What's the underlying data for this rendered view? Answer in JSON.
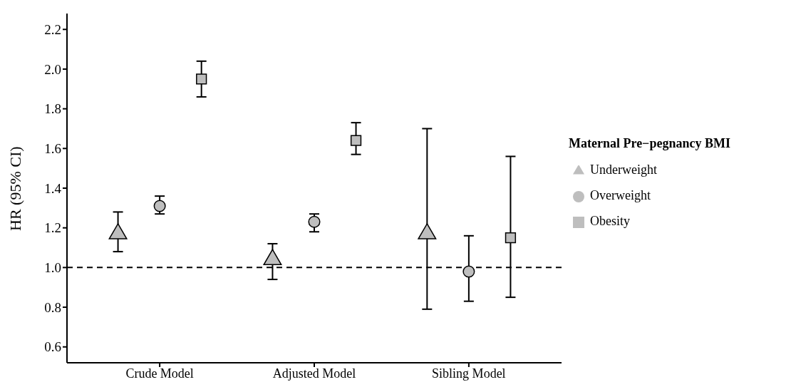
{
  "chart_data": {
    "type": "scatter",
    "ylabel": "HR (95% CI)",
    "legend_title": "Maternal Pre−pegnancy BMI",
    "legend": "right",
    "categories": [
      "Crude Model",
      "Adjusted Model",
      "Sibling Model"
    ],
    "ylim": [
      0.52,
      2.28
    ],
    "yticks": [
      0.6,
      0.8,
      {
        "value": 1,
        "label": "1.0"
      },
      1.2,
      1.4,
      1.6,
      1.8,
      {
        "value": 2,
        "label": "2.0"
      },
      2.2
    ],
    "grid": false,
    "series": [
      {
        "name": "Underweight",
        "color": "#bebebe",
        "marker": "triangle",
        "values": [
          1.17,
          1.04,
          1.17
        ],
        "errors": [
          [
            1.08,
            1.28
          ],
          [
            0.94,
            1.12
          ],
          [
            0.79,
            1.7
          ]
        ]
      },
      {
        "name": "Overweight",
        "color": "#bebebe",
        "marker": "circle",
        "values": [
          1.31,
          1.23,
          0.98
        ],
        "errors": [
          [
            1.27,
            1.36
          ],
          [
            1.18,
            1.27
          ],
          [
            0.83,
            1.16
          ]
        ]
      },
      {
        "name": "Obesity",
        "color": "#bebebe",
        "marker": "square",
        "values": [
          1.95,
          1.64,
          1.15
        ],
        "errors": [
          [
            1.86,
            2.04
          ],
          [
            1.57,
            1.73
          ],
          [
            0.85,
            1.56
          ]
        ]
      }
    ],
    "ref_lines": [
      {
        "axis": "y",
        "value": 1,
        "line_style": "dashed"
      }
    ]
  }
}
